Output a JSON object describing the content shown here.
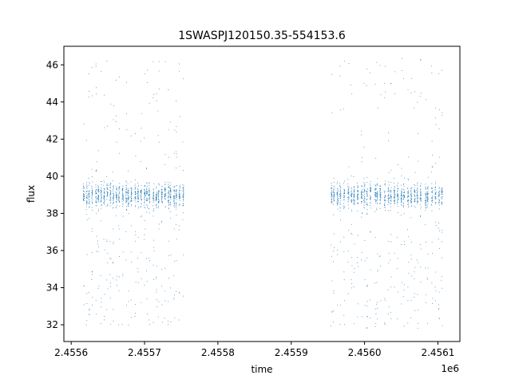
{
  "chart_data": {
    "type": "scatter",
    "title": "1SWASPJ120150.35-554153.6",
    "xlabel": "time",
    "ylabel": "flux",
    "x_offset_label": "1e6",
    "xlim": [
      2.45559,
      2.45613
    ],
    "ylim": [
      31.1,
      47.0
    ],
    "x_ticks": [
      2.4556,
      2.4557,
      2.4558,
      2.4559,
      2.456,
      2.4561
    ],
    "x_tick_labels": [
      "2.4556",
      "2.4557",
      "2.4558",
      "2.4559",
      "2.4560",
      "2.4561"
    ],
    "y_ticks": [
      32,
      34,
      36,
      38,
      40,
      42,
      44,
      46
    ],
    "y_tick_labels": [
      "32",
      "34",
      "36",
      "38",
      "40",
      "42",
      "44",
      "46"
    ],
    "grid": false,
    "marker_color": "#1f77b4",
    "series": [
      {
        "values_description": "observation clusters",
        "clusters": [
          {
            "x_range": [
              2.455615,
              2.455755
            ],
            "y_center": 39.0,
            "y_low": 32.0,
            "y_high": 46.3
          },
          {
            "x_range": [
              2.455952,
              2.456108
            ],
            "y_center": 39.0,
            "y_low": 31.8,
            "y_high": 46.4
          }
        ]
      }
    ]
  }
}
